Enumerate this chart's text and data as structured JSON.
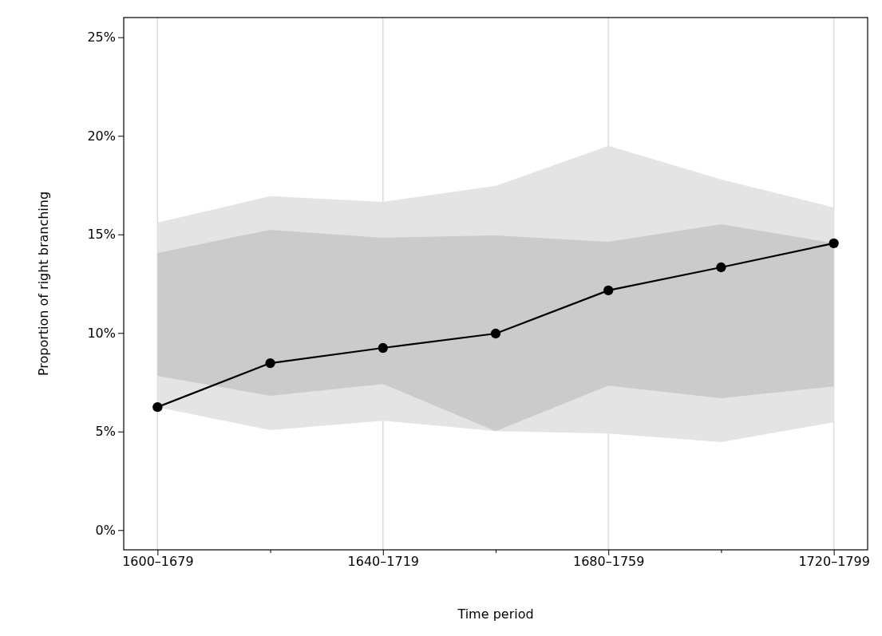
{
  "chart_data": {
    "type": "line",
    "xlabel": "Time period",
    "ylabel": "Proportion of right branching",
    "categories": [
      "1600–1679",
      null,
      "1640–1719",
      null,
      "1680–1759",
      null,
      "1720–1799"
    ],
    "series": [
      {
        "color": "#e4e4e4",
        "values": [
          null,
          null,
          null,
          null,
          null,
          null,
          null
        ],
        "lower": [
          6.24,
          5.07,
          5.55,
          5.02,
          4.9,
          4.46,
          5.47
        ],
        "upper": [
          15.6,
          16.94,
          16.65,
          17.46,
          19.49,
          17.79,
          16.37
        ]
      },
      {
        "color": "#cbcbcb",
        "values": [
          null,
          null,
          null,
          null,
          null,
          null,
          null
        ],
        "lower": [
          7.82,
          6.81,
          7.41,
          5.02,
          7.33,
          6.69,
          7.29
        ],
        "upper": [
          14.06,
          15.23,
          14.83,
          14.95,
          14.63,
          15.52,
          14.55
        ]
      },
      {
        "color": "#000000",
        "values": [
          6.24,
          8.47,
          9.24,
          9.97,
          12.16,
          13.33,
          14.55
        ]
      }
    ],
    "ylim": [
      -1,
      26
    ],
    "yticks": [
      {
        "value": 0,
        "label": "0%"
      },
      {
        "value": 5,
        "label": "5%"
      },
      {
        "value": 10,
        "label": "10%"
      },
      {
        "value": 15,
        "label": "15%"
      },
      {
        "value": 20,
        "label": "20%"
      },
      {
        "value": 25,
        "label": "25%"
      }
    ],
    "grid": "x",
    "marker": "circle",
    "line_style": "solid"
  }
}
